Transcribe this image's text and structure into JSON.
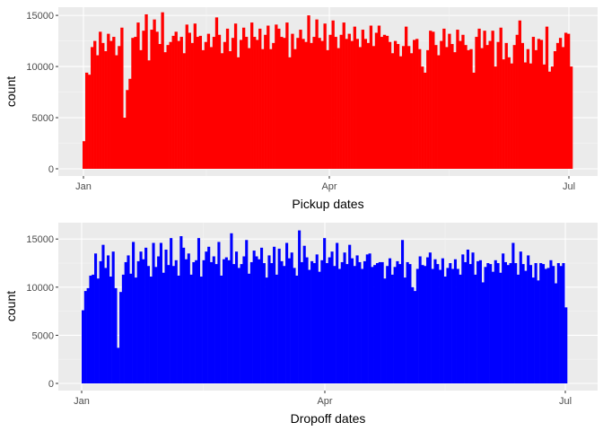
{
  "chart_data": [
    {
      "type": "bar",
      "xlabel": "Pickup dates",
      "ylabel": "count",
      "fill_color": "#ff0000",
      "panel_color": "#ebebeb",
      "grid": true,
      "ylim": [
        0,
        15800
      ],
      "yticks": [
        0,
        5000,
        10000,
        15000
      ],
      "ytick_labels": [
        "0",
        "5000",
        "10000",
        "15000"
      ],
      "xticks": [
        "Jan",
        "Apr",
        "Jul"
      ],
      "x_range": [
        "2016-01-01",
        "2016-07-01"
      ],
      "values": [
        2700,
        9400,
        9200,
        11900,
        12500,
        11100,
        13400,
        12300,
        11500,
        13200,
        12500,
        12900,
        11100,
        12000,
        13800,
        5000,
        7700,
        8800,
        12800,
        12900,
        14300,
        11600,
        13500,
        15100,
        10600,
        13600,
        14600,
        13400,
        12200,
        15300,
        11400,
        12100,
        12400,
        13000,
        13400,
        12500,
        12900,
        11300,
        14100,
        13300,
        12300,
        14200,
        12900,
        13000,
        11600,
        12400,
        13200,
        11900,
        12900,
        14800,
        13100,
        11300,
        12400,
        13700,
        11500,
        12800,
        14200,
        10900,
        12600,
        13800,
        12900,
        11800,
        14300,
        12900,
        12600,
        13700,
        11700,
        13100,
        14000,
        11700,
        12300,
        14100,
        13700,
        12900,
        12800,
        14300,
        10900,
        13200,
        11700,
        12800,
        13600,
        12700,
        12400,
        15000,
        12300,
        12900,
        14600,
        12800,
        12500,
        14200,
        11600,
        13100,
        14500,
        12900,
        11800,
        13100,
        14300,
        12700,
        13200,
        12500,
        13900,
        12700,
        11900,
        13600,
        12700,
        12300,
        14000,
        12000,
        13300,
        14000,
        12900,
        13100,
        13000,
        12400,
        11300,
        12500,
        12200,
        11000,
        12000,
        13900,
        12000,
        11300,
        12600,
        12700,
        11700,
        10000,
        9400,
        11600,
        13500,
        13400,
        12100,
        11100,
        12500,
        13700,
        11900,
        13200,
        12200,
        11400,
        13600,
        12500,
        13100,
        12100,
        11600,
        11700,
        9400,
        12900,
        13700,
        11800,
        13500,
        12100,
        12500,
        13500,
        10000,
        12400,
        13800,
        10700,
        12300,
        10900,
        10300,
        12100,
        13100,
        14500,
        12300,
        10400,
        11700,
        10300,
        12900,
        11600,
        12700,
        12600,
        10200,
        13900,
        9500,
        10000,
        11500,
        12300,
        12800,
        11900,
        13300,
        13200,
        10000
      ]
    },
    {
      "type": "bar",
      "xlabel": "Dropoff dates",
      "ylabel": "count",
      "fill_color": "#0000ff",
      "panel_color": "#ebebeb",
      "grid": true,
      "ylim": [
        0,
        16700
      ],
      "yticks": [
        0,
        5000,
        10000,
        15000
      ],
      "ytick_labels": [
        "0",
        "5000",
        "10000",
        "15000"
      ],
      "xticks": [
        "Jan",
        "Apr",
        "Jul"
      ],
      "x_range": [
        "2016-01-01",
        "2016-07-01"
      ],
      "values": [
        7600,
        9600,
        9900,
        11200,
        11300,
        13500,
        10900,
        12700,
        14400,
        12000,
        13300,
        11100,
        13700,
        9900,
        3700,
        9500,
        11300,
        12600,
        13300,
        11400,
        14700,
        11000,
        12700,
        13700,
        12900,
        14100,
        12200,
        11100,
        14600,
        12100,
        13200,
        14600,
        11500,
        13900,
        12300,
        15100,
        12200,
        12800,
        11200,
        15300,
        14100,
        12900,
        13500,
        11300,
        12600,
        12800,
        15100,
        11100,
        12800,
        13700,
        14200,
        12600,
        13200,
        12400,
        14700,
        11200,
        12900,
        13100,
        12800,
        15600,
        12400,
        13700,
        12000,
        12400,
        13200,
        14900,
        11400,
        12600,
        13800,
        13200,
        12900,
        14100,
        12500,
        11000,
        13300,
        12500,
        14200,
        11300,
        14000,
        12700,
        12200,
        14600,
        13000,
        13600,
        12000,
        11200,
        15900,
        12600,
        14300,
        13100,
        11800,
        12700,
        12500,
        13400,
        11600,
        12800,
        15100,
        12500,
        13100,
        13700,
        12200,
        14600,
        11900,
        12600,
        13600,
        12400,
        14400,
        13000,
        12200,
        13300,
        12600,
        11900,
        12700,
        13400,
        13500,
        12100,
        12300,
        12500,
        12600,
        12600,
        10900,
        12200,
        13000,
        11300,
        12100,
        12700,
        12400,
        14900,
        11000,
        12600,
        12400,
        10000,
        9600,
        11900,
        13200,
        12300,
        12200,
        13100,
        13600,
        11900,
        12900,
        12400,
        11800,
        13000,
        11100,
        12000,
        12500,
        11900,
        12900,
        11900,
        11300,
        13400,
        12600,
        13900,
        12400,
        13600,
        11300,
        12700,
        12800,
        10500,
        12100,
        12500,
        12400,
        11600,
        12800,
        12500,
        11500,
        13500,
        12600,
        12300,
        12500,
        14600,
        12500,
        11300,
        13700,
        12400,
        11700,
        13300,
        12300,
        11000,
        12500,
        10700,
        12500,
        12400,
        11900,
        12000,
        12800,
        12200,
        10400,
        12500,
        12200,
        12500,
        7900
      ]
    }
  ]
}
